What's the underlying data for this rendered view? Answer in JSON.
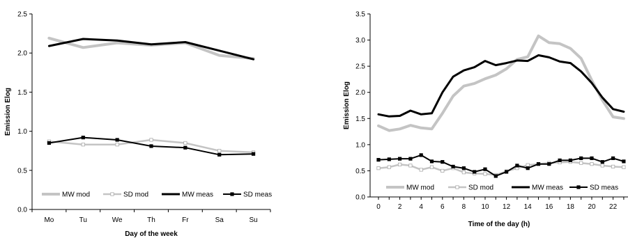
{
  "chart_data": [
    {
      "type": "line",
      "xlabel": "Day of the week",
      "ylabel": "Emission Elog",
      "categories": [
        "Mo",
        "Tu",
        "We",
        "Th",
        "Fr",
        "Sa",
        "Su"
      ],
      "ylim": [
        0,
        2.5
      ],
      "yticks": [
        "0.0",
        "0.5",
        "1.0",
        "1.5",
        "2.0",
        "2.5"
      ],
      "grid": false,
      "legend_position": "bottom",
      "series": [
        {
          "name": "MW mod",
          "style": "mod",
          "values": [
            2.19,
            2.07,
            2.13,
            2.1,
            2.13,
            1.97,
            1.93
          ]
        },
        {
          "name": "SD mod",
          "style": "mod-dot",
          "values": [
            0.87,
            0.83,
            0.83,
            0.89,
            0.85,
            0.75,
            0.73
          ]
        },
        {
          "name": "MW meas",
          "style": "meas",
          "values": [
            2.09,
            2.18,
            2.16,
            2.11,
            2.14,
            2.03,
            1.92
          ]
        },
        {
          "name": "SD meas",
          "style": "meas-dot",
          "values": [
            0.85,
            0.92,
            0.89,
            0.81,
            0.79,
            0.7,
            0.71
          ]
        }
      ]
    },
    {
      "type": "line",
      "xlabel": "Time of the day (h)",
      "ylabel": "Emission Elog",
      "x": [
        0,
        1,
        2,
        3,
        4,
        5,
        6,
        7,
        8,
        9,
        10,
        11,
        12,
        13,
        14,
        15,
        16,
        17,
        18,
        19,
        20,
        21,
        22,
        23
      ],
      "xticks": [
        "0",
        "2",
        "4",
        "6",
        "8",
        "10",
        "12",
        "14",
        "16",
        "18",
        "20",
        "22"
      ],
      "ylim": [
        0,
        3.5
      ],
      "yticks": [
        "0.0",
        "0.5",
        "1.0",
        "1.5",
        "2.0",
        "2.5",
        "3.0",
        "3.5"
      ],
      "grid": false,
      "legend_position": "bottom",
      "series": [
        {
          "name": "MW mod",
          "style": "mod",
          "values": [
            1.36,
            1.27,
            1.3,
            1.37,
            1.32,
            1.3,
            1.6,
            1.93,
            2.12,
            2.17,
            2.26,
            2.33,
            2.45,
            2.63,
            2.68,
            3.08,
            2.95,
            2.93,
            2.84,
            2.65,
            2.23,
            1.85,
            1.53,
            1.5
          ]
        },
        {
          "name": "SD mod",
          "style": "mod-dot",
          "values": [
            0.55,
            0.57,
            0.62,
            0.6,
            0.52,
            0.57,
            0.5,
            0.55,
            0.47,
            0.45,
            0.44,
            0.42,
            0.49,
            0.55,
            0.61,
            0.63,
            0.65,
            0.66,
            0.67,
            0.65,
            0.63,
            0.6,
            0.58,
            0.57
          ]
        },
        {
          "name": "MW meas",
          "style": "meas",
          "values": [
            1.58,
            1.54,
            1.55,
            1.65,
            1.58,
            1.6,
            2.0,
            2.3,
            2.42,
            2.48,
            2.6,
            2.52,
            2.56,
            2.61,
            2.6,
            2.71,
            2.67,
            2.59,
            2.56,
            2.4,
            2.18,
            1.9,
            1.68,
            1.63
          ]
        },
        {
          "name": "SD meas",
          "style": "meas-dot",
          "values": [
            0.71,
            0.72,
            0.73,
            0.73,
            0.8,
            0.68,
            0.67,
            0.58,
            0.55,
            0.48,
            0.53,
            0.4,
            0.48,
            0.6,
            0.55,
            0.63,
            0.63,
            0.7,
            0.7,
            0.74,
            0.74,
            0.67,
            0.74,
            0.68
          ]
        }
      ]
    }
  ]
}
